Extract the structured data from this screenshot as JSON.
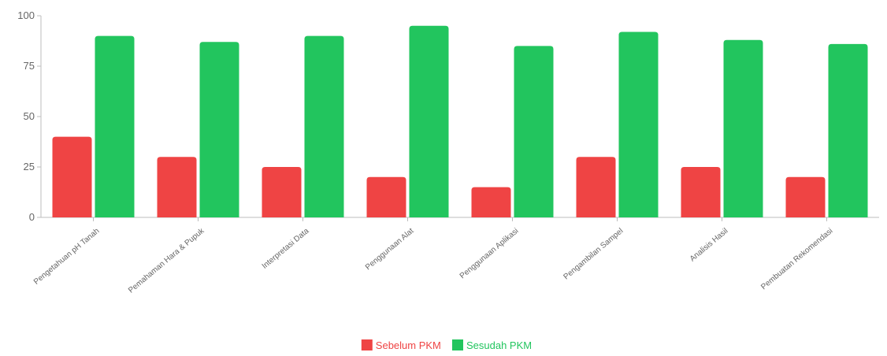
{
  "chart_data": {
    "type": "bar",
    "title": "",
    "xlabel": "",
    "ylabel": "",
    "ylim": [
      0,
      100
    ],
    "yticks": [
      0,
      25,
      50,
      75,
      100
    ],
    "grid": false,
    "legend_position": "bottom-center",
    "categories": [
      "Pengetahuan pH Tanah",
      "Pemahaman Hara & Pupuk",
      "Interpretasi Data",
      "Penggunaan Alat",
      "Penggunaan Aplikasi",
      "Pengambilan Sampel",
      "Analisis Hasil",
      "Pembuatan Rekomendasi"
    ],
    "series": [
      {
        "name": "Sebelum PKM",
        "color": "#ef4444",
        "values": [
          40,
          30,
          25,
          20,
          15,
          30,
          25,
          20
        ]
      },
      {
        "name": "Sesudah PKM",
        "color": "#22c55e",
        "values": [
          90,
          87,
          90,
          95,
          85,
          92,
          88,
          86
        ]
      }
    ]
  }
}
